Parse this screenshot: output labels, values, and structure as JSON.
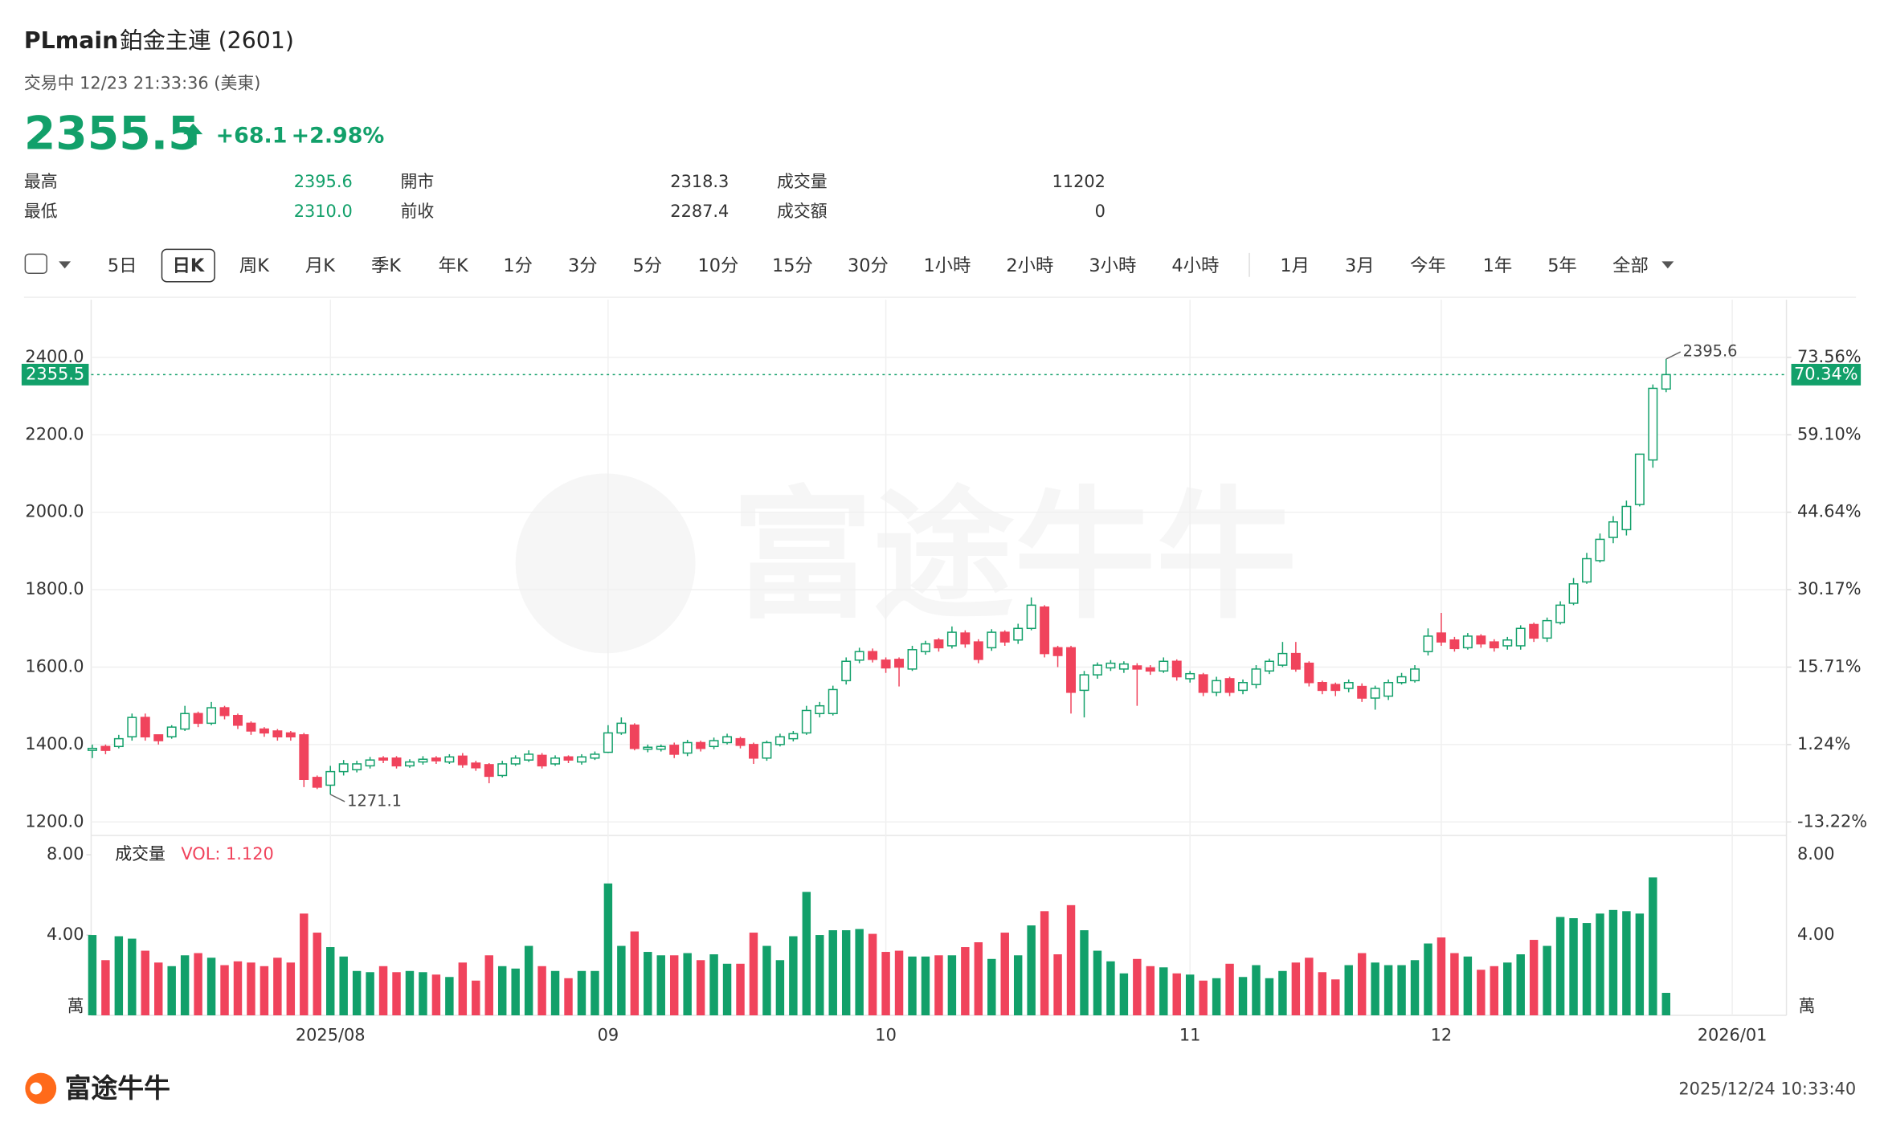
{
  "header": {
    "symbol": "PLmain",
    "name": "鉑金主連 (2601)",
    "status": "交易中 12/23 21:33:36 (美東)",
    "price": "2355.5",
    "change": "+68.1",
    "change_pct": "+2.98%",
    "stats": [
      [
        "最高",
        "2395.6",
        "開市",
        "2318.3",
        "成交量",
        "11202"
      ],
      [
        "最低",
        "2310.0",
        "前收",
        "2287.4",
        "成交額",
        "0"
      ]
    ],
    "toolbar": [
      "5日",
      "日K",
      "周K",
      "月K",
      "季K",
      "年K",
      "1分",
      "3分",
      "5分",
      "10分",
      "15分",
      "30分",
      "1小時",
      "2小時",
      "3小時",
      "4小時",
      "1月",
      "3月",
      "今年",
      "1年",
      "5年",
      "全部"
    ]
  },
  "chart_data": {
    "type": "candlestick",
    "up_color": "#12a06a",
    "down_color": "#f0435c",
    "watermark": "富途牛牛",
    "xlim": [
      -0.09,
      128.1
    ],
    "xticks": [
      {
        "value": 18,
        "label": "2025/08"
      },
      {
        "value": 39,
        "label": "09"
      },
      {
        "value": 60,
        "label": "10"
      },
      {
        "value": 83,
        "label": "11"
      },
      {
        "value": 102,
        "label": "12"
      },
      {
        "value": 124,
        "label": "2026/01"
      }
    ],
    "ylim": [
      1165,
      2549
    ],
    "yticks": [
      {
        "value": 1200,
        "label": "1200.0"
      },
      {
        "value": 1400,
        "label": "1400.0"
      },
      {
        "value": 1600,
        "label": "1600.0"
      },
      {
        "value": 1800,
        "label": "1800.0"
      },
      {
        "value": 2000,
        "label": "2000.0"
      },
      {
        "value": 2200,
        "label": "2200.0"
      },
      {
        "value": 2400,
        "label": "2400.0"
      }
    ],
    "y2lim": [
      -15.75,
      84.34
    ],
    "y2ticks": [
      {
        "value": -13.22,
        "label": "-13.22%"
      },
      {
        "value": 1.24,
        "label": "1.24%"
      },
      {
        "value": 15.71,
        "label": "15.71%"
      },
      {
        "value": 30.17,
        "label": "30.17%"
      },
      {
        "value": 44.64,
        "label": "44.64%"
      },
      {
        "value": 59.1,
        "label": "59.10%"
      },
      {
        "value": 73.56,
        "label": "73.56%"
      }
    ],
    "y2_marker": {
      "value": 70.34,
      "label": "70.34%"
    },
    "open": [
      1385,
      1395,
      1395,
      1420,
      1470,
      1425,
      1420,
      1440,
      1480,
      1455,
      1495,
      1475,
      1455,
      1440,
      1435,
      1430,
      1425,
      1315,
      1295,
      1330,
      1335,
      1345,
      1365,
      1365,
      1345,
      1355,
      1365,
      1355,
      1370,
      1352,
      1348,
      1320,
      1350,
      1360,
      1372,
      1350,
      1368,
      1355,
      1365,
      1380,
      1430,
      1450,
      1388,
      1388,
      1398,
      1378,
      1405,
      1395,
      1405,
      1415,
      1400,
      1365,
      1400,
      1415,
      1430,
      1480,
      1480,
      1565,
      1618,
      1640,
      1618,
      1620,
      1595,
      1640,
      1670,
      1655,
      1688,
      1665,
      1650,
      1690,
      1670,
      1700,
      1755,
      1650,
      1650,
      1540,
      1580,
      1598,
      1595,
      1603,
      1598,
      1590,
      1615,
      1570,
      1580,
      1535,
      1570,
      1540,
      1555,
      1590,
      1605,
      1635,
      1610,
      1560,
      1555,
      1545,
      1550,
      1520,
      1525,
      1560,
      1565,
      1640,
      1688,
      1670,
      1650,
      1680,
      1665,
      1655,
      1655,
      1710,
      1675,
      1715,
      1765,
      1820,
      1875,
      1935,
      1955,
      2020,
      2135,
      2318.3
    ],
    "high": [
      1400,
      1400,
      1425,
      1480,
      1480,
      1420,
      1450,
      1500,
      1485,
      1510,
      1500,
      1480,
      1460,
      1445,
      1440,
      1435,
      1430,
      1320,
      1345,
      1360,
      1358,
      1368,
      1370,
      1370,
      1362,
      1370,
      1370,
      1375,
      1378,
      1358,
      1352,
      1358,
      1372,
      1385,
      1378,
      1372,
      1372,
      1375,
      1382,
      1450,
      1470,
      1455,
      1400,
      1400,
      1405,
      1412,
      1410,
      1418,
      1428,
      1420,
      1405,
      1410,
      1428,
      1435,
      1500,
      1510,
      1552,
      1625,
      1650,
      1648,
      1625,
      1625,
      1655,
      1668,
      1675,
      1705,
      1695,
      1672,
      1698,
      1695,
      1712,
      1780,
      1760,
      1655,
      1655,
      1590,
      1612,
      1618,
      1615,
      1610,
      1605,
      1625,
      1620,
      1590,
      1585,
      1575,
      1575,
      1568,
      1605,
      1622,
      1665,
      1665,
      1615,
      1565,
      1560,
      1568,
      1558,
      1552,
      1568,
      1585,
      1605,
      1700,
      1740,
      1678,
      1688,
      1685,
      1672,
      1678,
      1708,
      1715,
      1728,
      1770,
      1830,
      1895,
      1945,
      1990,
      2030,
      2150,
      2330,
      2395.6
    ],
    "low": [
      1365,
      1375,
      1390,
      1410,
      1410,
      1400,
      1415,
      1435,
      1445,
      1450,
      1465,
      1440,
      1425,
      1420,
      1410,
      1410,
      1290,
      1285,
      1271.1,
      1320,
      1328,
      1338,
      1352,
      1338,
      1340,
      1348,
      1350,
      1350,
      1340,
      1332,
      1300,
      1315,
      1345,
      1355,
      1338,
      1345,
      1352,
      1348,
      1360,
      1378,
      1425,
      1385,
      1380,
      1382,
      1365,
      1370,
      1382,
      1388,
      1400,
      1390,
      1350,
      1358,
      1395,
      1408,
      1425,
      1470,
      1475,
      1555,
      1610,
      1612,
      1585,
      1550,
      1590,
      1632,
      1640,
      1648,
      1650,
      1610,
      1642,
      1655,
      1660,
      1695,
      1625,
      1600,
      1480,
      1470,
      1570,
      1590,
      1585,
      1500,
      1580,
      1585,
      1565,
      1560,
      1525,
      1525,
      1525,
      1530,
      1545,
      1582,
      1600,
      1588,
      1550,
      1530,
      1525,
      1535,
      1510,
      1490,
      1515,
      1555,
      1560,
      1630,
      1655,
      1640,
      1645,
      1650,
      1640,
      1645,
      1645,
      1665,
      1665,
      1710,
      1760,
      1815,
      1870,
      1920,
      1940,
      2015,
      2115,
      2310.0
    ],
    "close": [
      1390,
      1385,
      1415,
      1470,
      1420,
      1410,
      1445,
      1480,
      1455,
      1495,
      1475,
      1450,
      1435,
      1430,
      1420,
      1420,
      1310,
      1290,
      1330,
      1350,
      1350,
      1360,
      1360,
      1345,
      1355,
      1362,
      1358,
      1368,
      1348,
      1340,
      1318,
      1350,
      1365,
      1375,
      1345,
      1365,
      1360,
      1368,
      1375,
      1430,
      1455,
      1390,
      1393,
      1395,
      1375,
      1405,
      1390,
      1410,
      1420,
      1398,
      1365,
      1405,
      1420,
      1428,
      1488,
      1500,
      1542,
      1615,
      1640,
      1620,
      1598,
      1600,
      1645,
      1660,
      1650,
      1690,
      1660,
      1620,
      1690,
      1665,
      1700,
      1760,
      1635,
      1630,
      1535,
      1580,
      1605,
      1610,
      1608,
      1595,
      1590,
      1615,
      1575,
      1583,
      1535,
      1565,
      1535,
      1560,
      1595,
      1615,
      1635,
      1595,
      1560,
      1540,
      1540,
      1560,
      1520,
      1545,
      1560,
      1575,
      1595,
      1680,
      1665,
      1648,
      1680,
      1660,
      1650,
      1670,
      1700,
      1675,
      1720,
      1760,
      1815,
      1880,
      1930,
      1975,
      2015,
      2150,
      2320,
      2355.5
    ],
    "volume": {
      "title": "成交量",
      "indicator": "VOL: 1.120",
      "unit": "萬",
      "ylim": [
        0,
        8.78
      ],
      "yticks": [
        {
          "value": 4,
          "label": "4.00"
        },
        {
          "value": 8,
          "label": "8.00"
        }
      ],
      "values": [
        4.0,
        2.75,
        3.94,
        3.82,
        3.22,
        2.63,
        2.45,
        2.99,
        3.1,
        2.87,
        2.5,
        2.69,
        2.63,
        2.45,
        2.87,
        2.63,
        5.07,
        4.12,
        3.4,
        2.93,
        2.21,
        2.15,
        2.45,
        2.15,
        2.21,
        2.15,
        2.03,
        1.91,
        2.63,
        1.73,
        2.99,
        2.45,
        2.33,
        3.46,
        2.45,
        2.21,
        1.85,
        2.21,
        2.21,
        6.57,
        3.46,
        4.18,
        3.16,
        2.99,
        2.99,
        3.1,
        2.75,
        3.04,
        2.57,
        2.57,
        4.12,
        3.46,
        2.75,
        3.94,
        6.15,
        4.0,
        4.24,
        4.24,
        4.3,
        4.06,
        3.16,
        3.22,
        2.93,
        2.93,
        2.99,
        2.99,
        3.4,
        3.64,
        2.81,
        4.12,
        2.99,
        4.48,
        5.19,
        3.04,
        5.49,
        4.24,
        3.22,
        2.69,
        2.09,
        2.81,
        2.45,
        2.39,
        2.09,
        2.03,
        1.73,
        1.85,
        2.57,
        1.91,
        2.5,
        1.85,
        2.21,
        2.63,
        2.87,
        2.15,
        1.79,
        2.5,
        3.1,
        2.63,
        2.5,
        2.5,
        2.75,
        3.58,
        3.88,
        3.1,
        2.93,
        2.27,
        2.45,
        2.63,
        3.04,
        3.76,
        3.46,
        4.9,
        4.84,
        4.6,
        5.07,
        5.25,
        5.19,
        5.07,
        6.87,
        1.12
      ]
    }
  },
  "footer": {
    "brand": "富途牛牛",
    "timestamp": "2025/12/24 10:33:40"
  }
}
